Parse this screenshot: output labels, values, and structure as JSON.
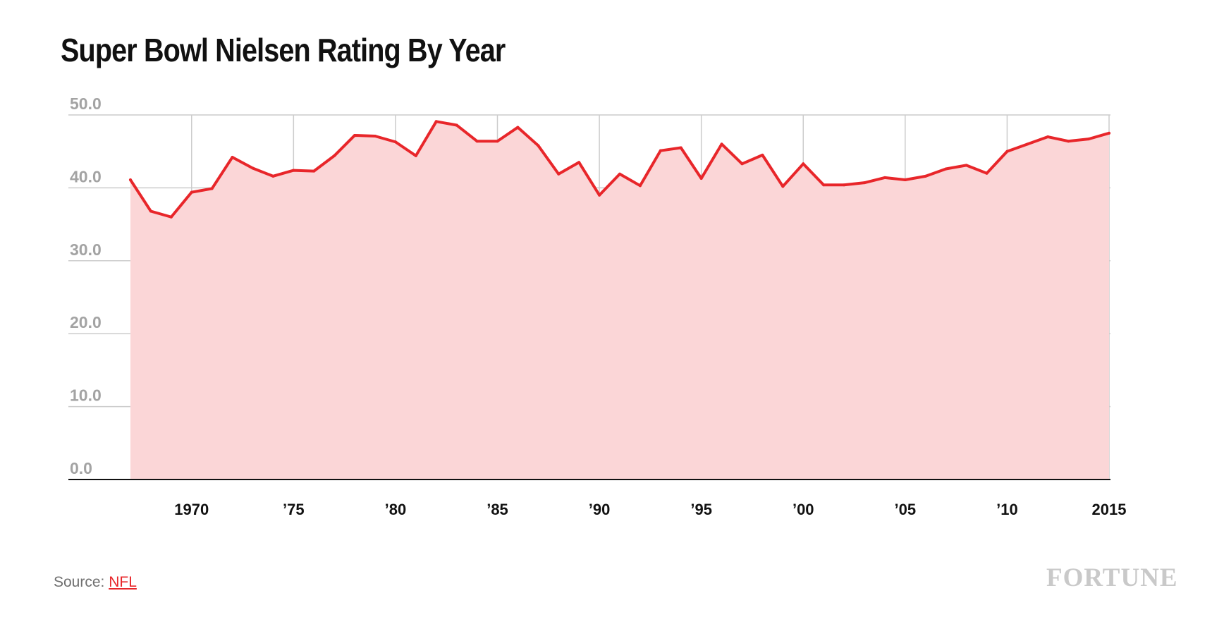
{
  "title": "Super Bowl Nielsen Rating By Year",
  "source_prefix": "Source: ",
  "source_link": "NFL",
  "brand_logo": "FORTUNE",
  "colors": {
    "line": "#e8262a",
    "area": "#fbd6d7",
    "grid": "#cccccc",
    "axis": "#111111",
    "ytick": "#a3a3a3"
  },
  "chart_data": {
    "type": "area",
    "title": "Super Bowl Nielsen Rating By Year",
    "xlabel": "",
    "ylabel": "",
    "ylim": [
      0,
      50
    ],
    "xlim": [
      1967,
      2015
    ],
    "yticks": [
      0,
      10,
      20,
      30,
      40,
      50
    ],
    "ytick_labels": [
      "0.0",
      "10.0",
      "20.0",
      "30.0",
      "40.0",
      "50.0"
    ],
    "xticks": [
      1970,
      1975,
      1980,
      1985,
      1990,
      1995,
      2000,
      2005,
      2010,
      2015
    ],
    "xtick_labels": [
      "1970",
      "’75",
      "’80",
      "’85",
      "’90",
      "’95",
      "’00",
      "’05",
      "’10",
      "2015"
    ],
    "grid": true,
    "series": [
      {
        "x": [
          1967,
          1968,
          1969,
          1970,
          1971,
          1972,
          1973,
          1974,
          1975,
          1976,
          1977,
          1978,
          1979,
          1980,
          1981,
          1982,
          1983,
          1984,
          1985,
          1986,
          1987,
          1988,
          1989,
          1990,
          1991,
          1992,
          1993,
          1994,
          1995,
          1996,
          1997,
          1998,
          1999,
          2000,
          2001,
          2002,
          2003,
          2004,
          2005,
          2006,
          2007,
          2008,
          2009,
          2010,
          2011,
          2012,
          2013,
          2014,
          2015
        ],
        "values": [
          41.1,
          36.8,
          36.0,
          39.4,
          39.9,
          44.2,
          42.7,
          41.6,
          42.4,
          42.3,
          44.4,
          47.2,
          47.1,
          46.3,
          44.4,
          49.1,
          48.6,
          46.4,
          46.4,
          48.3,
          45.8,
          41.9,
          43.5,
          39.0,
          41.9,
          40.3,
          45.1,
          45.5,
          41.3,
          46.0,
          43.3,
          44.5,
          40.2,
          43.3,
          40.4,
          40.4,
          40.7,
          41.4,
          41.1,
          41.6,
          42.6,
          43.1,
          42.0,
          45.0,
          46.0,
          47.0,
          46.4,
          46.7,
          47.5
        ]
      }
    ]
  }
}
